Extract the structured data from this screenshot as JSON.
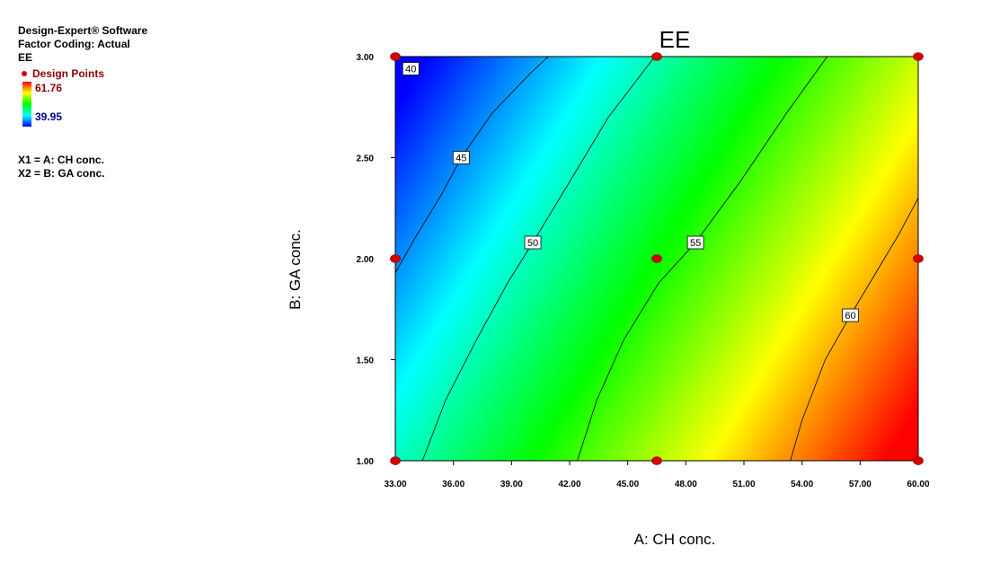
{
  "info": {
    "software": "Design-Expert® Software",
    "coding": "Factor Coding: Actual",
    "response": "EE",
    "design_points_label": "Design Points",
    "max_value": "61.76",
    "min_value": "39.95",
    "x1_def": "X1 = A: CH conc.",
    "x2_def": "X2 = B: GA conc."
  },
  "colors": {
    "high": "#ff0000",
    "mid_high": "#ffff00",
    "mid": "#00ff00",
    "mid_low": "#00ffff",
    "low": "#0000ff",
    "design_point": "#d40000"
  },
  "chart_data": {
    "type": "heatmap",
    "title": "EE",
    "xlabel": "A: CH conc.",
    "ylabel": "B: GA conc.",
    "xlim": [
      33,
      60
    ],
    "ylim": [
      1,
      3
    ],
    "x_ticks": [
      "33.00",
      "36.00",
      "39.00",
      "42.00",
      "45.00",
      "48.00",
      "51.00",
      "54.00",
      "57.00",
      "60.00"
    ],
    "y_ticks": [
      "1.00",
      "1.50",
      "2.00",
      "2.50",
      "3.00"
    ],
    "value_range": [
      39.95,
      61.76
    ],
    "contours": [
      {
        "level": "40",
        "label": "40",
        "label_at": [
          33.8,
          2.94
        ],
        "points": [
          [
            33.8,
            2.94
          ]
        ]
      },
      {
        "level": "45",
        "label": "45",
        "label_at": [
          36.4,
          2.5
        ],
        "points": [
          [
            33,
            1.93
          ],
          [
            34.0,
            2.1
          ],
          [
            35.4,
            2.32
          ],
          [
            36.4,
            2.5
          ],
          [
            38.0,
            2.72
          ],
          [
            40.0,
            2.92
          ],
          [
            40.9,
            3.0
          ]
        ]
      },
      {
        "level": "50",
        "label": "50",
        "label_at": [
          40.1,
          2.08
        ],
        "points": [
          [
            34.4,
            1.0
          ],
          [
            35.6,
            1.3
          ],
          [
            37.2,
            1.6
          ],
          [
            38.8,
            1.88
          ],
          [
            40.1,
            2.08
          ],
          [
            42.0,
            2.38
          ],
          [
            44.0,
            2.7
          ],
          [
            46.4,
            3.0
          ]
        ]
      },
      {
        "level": "55",
        "label": "55",
        "label_at": [
          48.5,
          2.08
        ],
        "points": [
          [
            42.4,
            1.0
          ],
          [
            43.4,
            1.3
          ],
          [
            44.8,
            1.6
          ],
          [
            46.6,
            1.88
          ],
          [
            48.5,
            2.08
          ],
          [
            50.8,
            2.38
          ],
          [
            53.2,
            2.72
          ],
          [
            55.3,
            3.0
          ]
        ]
      },
      {
        "level": "60",
        "label": "60",
        "label_at": [
          56.5,
          1.72
        ],
        "points": [
          [
            53.4,
            1.0
          ],
          [
            54.0,
            1.2
          ],
          [
            55.2,
            1.5
          ],
          [
            56.5,
            1.72
          ],
          [
            58.0,
            1.96
          ],
          [
            59.0,
            2.12
          ],
          [
            60,
            2.3
          ]
        ]
      }
    ],
    "design_points": [
      {
        "x": 33,
        "y": 1
      },
      {
        "x": 33,
        "y": 2
      },
      {
        "x": 33,
        "y": 3
      },
      {
        "x": 46.5,
        "y": 1
      },
      {
        "x": 46.5,
        "y": 2
      },
      {
        "x": 46.5,
        "y": 3
      },
      {
        "x": 60,
        "y": 1
      },
      {
        "x": 60,
        "y": 2
      },
      {
        "x": 60,
        "y": 3
      }
    ]
  }
}
